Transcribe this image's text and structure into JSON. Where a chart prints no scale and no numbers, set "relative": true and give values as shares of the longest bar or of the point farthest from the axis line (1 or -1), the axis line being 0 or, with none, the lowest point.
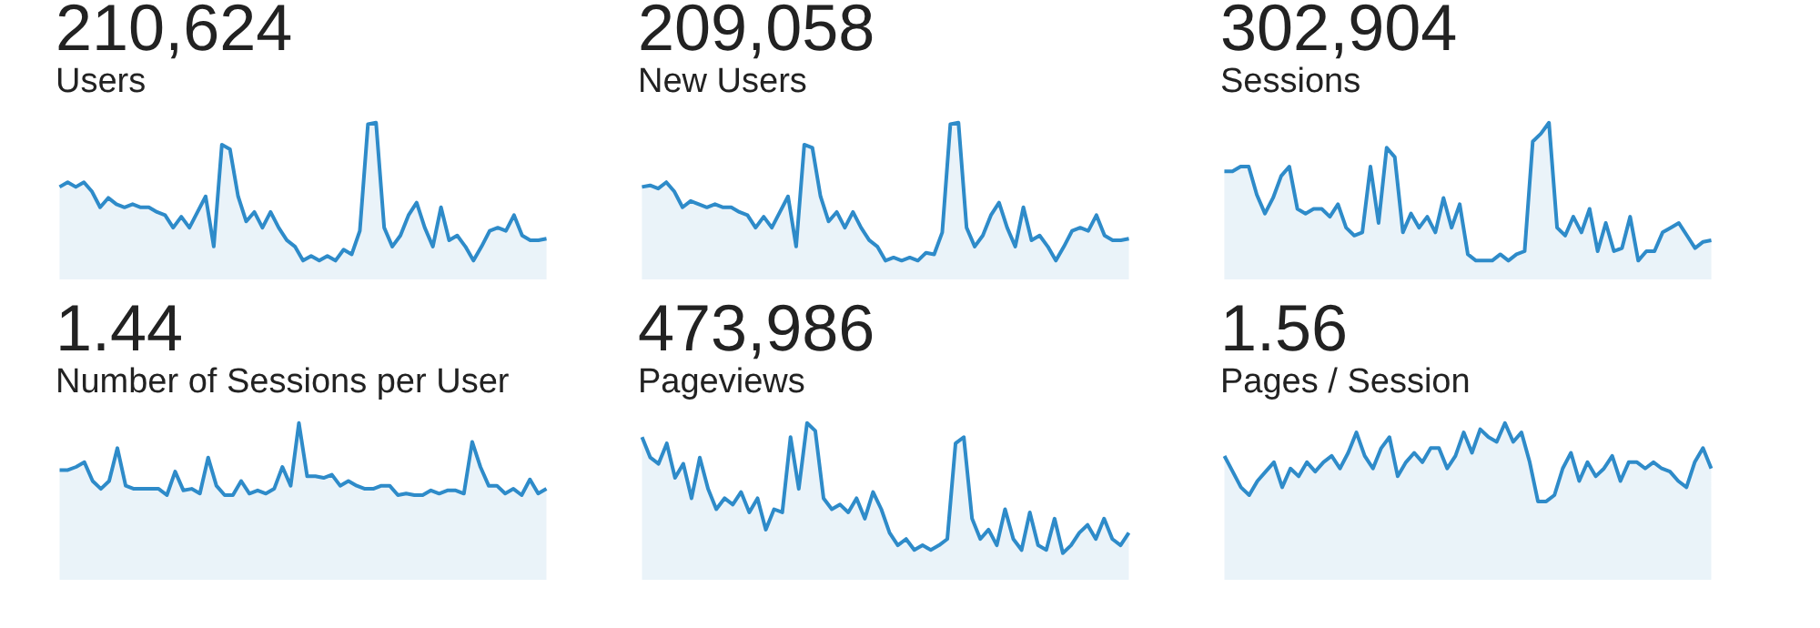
{
  "chart_data": [
    {
      "type": "area",
      "title": "Users",
      "subtitle": "210,624",
      "relative": true,
      "color": "#2e8bc9",
      "categories": [
        null,
        null,
        null,
        null,
        null,
        null,
        null,
        null,
        null,
        null,
        null,
        null,
        null,
        null,
        null,
        null,
        null,
        null,
        null,
        null,
        null,
        null,
        null,
        null,
        null,
        null,
        null,
        null,
        null,
        null,
        null,
        null,
        null,
        null,
        null,
        null,
        null,
        null,
        null,
        null,
        null,
        null,
        null,
        null,
        null,
        null,
        null,
        null,
        null,
        null,
        null,
        null,
        null,
        null,
        null,
        null,
        null,
        null,
        null,
        null,
        null
      ],
      "values": [
        0.59,
        0.62,
        0.59,
        0.62,
        0.56,
        0.46,
        0.52,
        0.48,
        0.46,
        0.48,
        0.46,
        0.46,
        0.43,
        0.41,
        0.33,
        0.4,
        0.33,
        0.43,
        0.53,
        0.21,
        0.86,
        0.83,
        0.53,
        0.37,
        0.43,
        0.33,
        0.43,
        0.33,
        0.25,
        0.21,
        0.12,
        0.15,
        0.12,
        0.15,
        0.12,
        0.19,
        0.16,
        0.31,
        0.99,
        1,
        0.33,
        0.21,
        0.28,
        0.41,
        0.49,
        0.33,
        0.21,
        0.46,
        0.25,
        0.28,
        0.21,
        0.12,
        0.21,
        0.31,
        0.33,
        0.31,
        0.41,
        0.28,
        0.25,
        0.25,
        0.26
      ]
    },
    {
      "type": "area",
      "title": "New Users",
      "subtitle": "209,058",
      "relative": true,
      "color": "#2e8bc9",
      "categories": [
        null,
        null,
        null,
        null,
        null,
        null,
        null,
        null,
        null,
        null,
        null,
        null,
        null,
        null,
        null,
        null,
        null,
        null,
        null,
        null,
        null,
        null,
        null,
        null,
        null,
        null,
        null,
        null,
        null,
        null,
        null,
        null,
        null,
        null,
        null,
        null,
        null,
        null,
        null,
        null,
        null,
        null,
        null,
        null,
        null,
        null,
        null,
        null,
        null,
        null,
        null,
        null,
        null,
        null,
        null,
        null,
        null,
        null,
        null,
        null,
        null
      ],
      "values": [
        0.59,
        0.6,
        0.58,
        0.62,
        0.56,
        0.46,
        0.5,
        0.48,
        0.46,
        0.48,
        0.46,
        0.46,
        0.43,
        0.41,
        0.33,
        0.4,
        0.33,
        0.43,
        0.53,
        0.21,
        0.86,
        0.84,
        0.53,
        0.37,
        0.43,
        0.33,
        0.43,
        0.33,
        0.25,
        0.21,
        0.12,
        0.14,
        0.12,
        0.14,
        0.12,
        0.17,
        0.16,
        0.3,
        0.99,
        1,
        0.33,
        0.21,
        0.28,
        0.41,
        0.49,
        0.33,
        0.21,
        0.46,
        0.25,
        0.28,
        0.21,
        0.12,
        0.21,
        0.31,
        0.33,
        0.31,
        0.41,
        0.28,
        0.25,
        0.25,
        0.26
      ]
    },
    {
      "type": "area",
      "title": "Sessions",
      "subtitle": "302,904",
      "relative": true,
      "color": "#2e8bc9",
      "categories": [
        null,
        null,
        null,
        null,
        null,
        null,
        null,
        null,
        null,
        null,
        null,
        null,
        null,
        null,
        null,
        null,
        null,
        null,
        null,
        null,
        null,
        null,
        null,
        null,
        null,
        null,
        null,
        null,
        null,
        null,
        null,
        null,
        null,
        null,
        null,
        null,
        null,
        null,
        null,
        null,
        null,
        null,
        null,
        null,
        null,
        null,
        null,
        null,
        null,
        null,
        null,
        null,
        null,
        null,
        null,
        null,
        null,
        null,
        null,
        null,
        null
      ],
      "values": [
        0.69,
        0.69,
        0.72,
        0.72,
        0.54,
        0.42,
        0.52,
        0.66,
        0.72,
        0.45,
        0.42,
        0.45,
        0.45,
        0.4,
        0.48,
        0.33,
        0.28,
        0.3,
        0.72,
        0.36,
        0.84,
        0.78,
        0.3,
        0.42,
        0.33,
        0.4,
        0.3,
        0.52,
        0.33,
        0.48,
        0.16,
        0.12,
        0.12,
        0.12,
        0.16,
        0.12,
        0.16,
        0.18,
        0.88,
        0.93,
        1,
        0.33,
        0.28,
        0.4,
        0.3,
        0.45,
        0.18,
        0.36,
        0.18,
        0.2,
        0.4,
        0.12,
        0.18,
        0.18,
        0.3,
        0.33,
        0.36,
        0.28,
        0.2,
        0.24,
        0.25
      ]
    },
    {
      "type": "area",
      "title": "Number of Sessions per User",
      "subtitle": "1.44",
      "relative": true,
      "color": "#2e8bc9",
      "categories": [
        null,
        null,
        null,
        null,
        null,
        null,
        null,
        null,
        null,
        null,
        null,
        null,
        null,
        null,
        null,
        null,
        null,
        null,
        null,
        null,
        null,
        null,
        null,
        null,
        null,
        null,
        null,
        null,
        null,
        null,
        null,
        null,
        null,
        null,
        null,
        null,
        null,
        null,
        null,
        null,
        null,
        null,
        null,
        null,
        null,
        null,
        null,
        null,
        null,
        null,
        null,
        null,
        null,
        null,
        null,
        null,
        null,
        null,
        null,
        null
      ],
      "values": [
        0.7,
        0.7,
        0.72,
        0.75,
        0.63,
        0.58,
        0.63,
        0.84,
        0.6,
        0.58,
        0.58,
        0.58,
        0.58,
        0.54,
        0.69,
        0.57,
        0.58,
        0.55,
        0.78,
        0.6,
        0.54,
        0.54,
        0.63,
        0.55,
        0.57,
        0.55,
        0.58,
        0.72,
        0.6,
        1,
        0.66,
        0.66,
        0.65,
        0.67,
        0.6,
        0.63,
        0.6,
        0.58,
        0.58,
        0.6,
        0.6,
        0.54,
        0.55,
        0.54,
        0.54,
        0.57,
        0.55,
        0.57,
        0.57,
        0.55,
        0.88,
        0.72,
        0.6,
        0.6,
        0.55,
        0.58,
        0.54,
        0.64,
        0.55,
        0.58
      ]
    },
    {
      "type": "area",
      "title": "Pageviews",
      "subtitle": "473,986",
      "relative": true,
      "color": "#2e8bc9",
      "categories": [
        null,
        null,
        null,
        null,
        null,
        null,
        null,
        null,
        null,
        null,
        null,
        null,
        null,
        null,
        null,
        null,
        null,
        null,
        null,
        null,
        null,
        null,
        null,
        null,
        null,
        null,
        null,
        null,
        null,
        null,
        null,
        null,
        null,
        null,
        null,
        null,
        null,
        null,
        null,
        null,
        null,
        null,
        null,
        null,
        null,
        null,
        null,
        null,
        null,
        null,
        null,
        null,
        null,
        null,
        null,
        null,
        null,
        null,
        null,
        null
      ],
      "values": [
        0.91,
        0.78,
        0.74,
        0.87,
        0.65,
        0.74,
        0.52,
        0.78,
        0.58,
        0.45,
        0.52,
        0.48,
        0.56,
        0.43,
        0.52,
        0.32,
        0.45,
        0.43,
        0.91,
        0.58,
        1,
        0.95,
        0.52,
        0.45,
        0.48,
        0.43,
        0.52,
        0.39,
        0.56,
        0.45,
        0.3,
        0.22,
        0.26,
        0.19,
        0.22,
        0.19,
        0.22,
        0.26,
        0.87,
        0.91,
        0.39,
        0.26,
        0.32,
        0.22,
        0.45,
        0.26,
        0.19,
        0.43,
        0.22,
        0.19,
        0.39,
        0.17,
        0.22,
        0.3,
        0.35,
        0.26,
        0.39,
        0.26,
        0.22,
        0.3
      ]
    },
    {
      "type": "area",
      "title": "Pages / Session",
      "subtitle": "1.56",
      "relative": true,
      "color": "#2e8bc9",
      "categories": [
        null,
        null,
        null,
        null,
        null,
        null,
        null,
        null,
        null,
        null,
        null,
        null,
        null,
        null,
        null,
        null,
        null,
        null,
        null,
        null,
        null,
        null,
        null,
        null,
        null,
        null,
        null,
        null,
        null,
        null,
        null,
        null,
        null,
        null,
        null,
        null,
        null,
        null,
        null,
        null,
        null,
        null,
        null,
        null,
        null,
        null,
        null,
        null,
        null,
        null,
        null,
        null,
        null,
        null,
        null,
        null,
        null,
        null,
        null,
        null
      ],
      "values": [
        0.79,
        0.69,
        0.59,
        0.54,
        0.63,
        0.69,
        0.75,
        0.59,
        0.71,
        0.66,
        0.75,
        0.69,
        0.75,
        0.79,
        0.71,
        0.81,
        0.94,
        0.79,
        0.71,
        0.84,
        0.91,
        0.66,
        0.75,
        0.81,
        0.75,
        0.84,
        0.84,
        0.71,
        0.79,
        0.94,
        0.81,
        0.96,
        0.91,
        0.88,
        1,
        0.88,
        0.94,
        0.75,
        0.5,
        0.5,
        0.54,
        0.71,
        0.81,
        0.63,
        0.75,
        0.66,
        0.71,
        0.79,
        0.63,
        0.75,
        0.75,
        0.71,
        0.75,
        0.71,
        0.69,
        0.63,
        0.59,
        0.75,
        0.84,
        0.71
      ]
    }
  ]
}
